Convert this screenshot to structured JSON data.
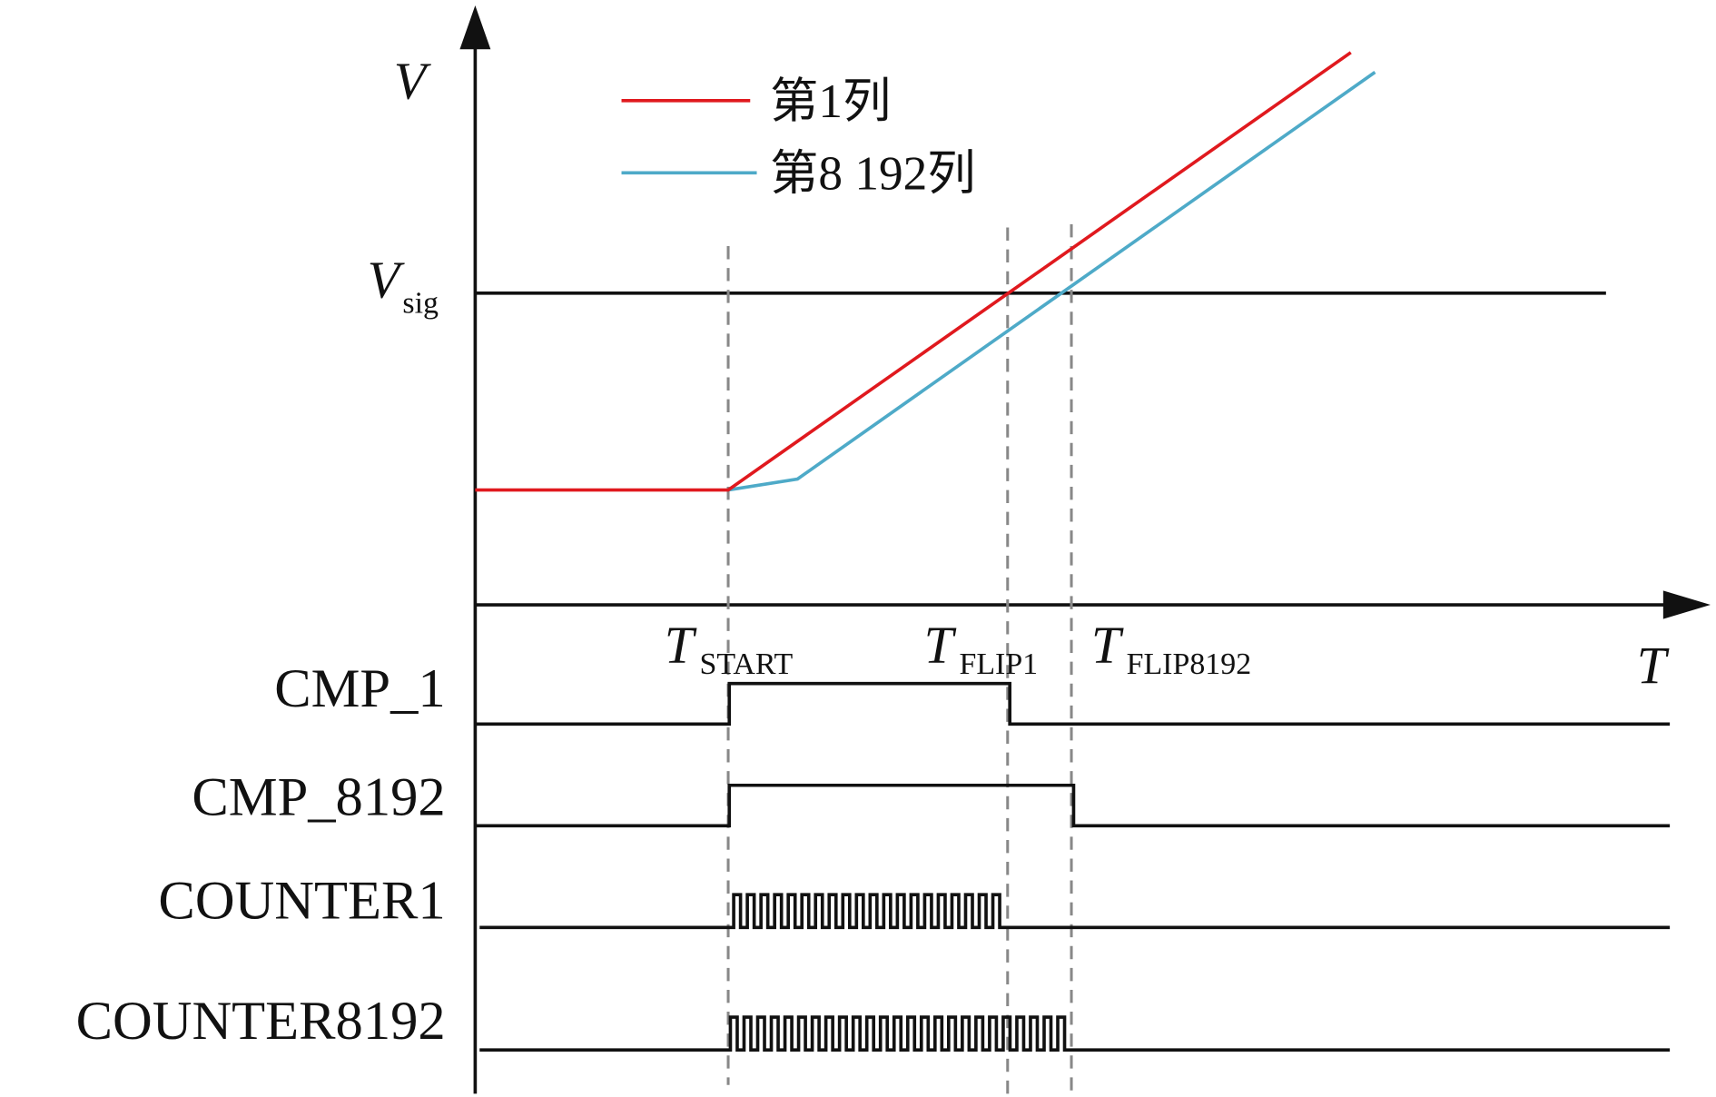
{
  "axes": {
    "y_label": "V",
    "x_label": "T"
  },
  "legend": [
    {
      "label": "第1列",
      "color": "#e0191e"
    },
    {
      "label": "第8 192列",
      "color": "#4eaac8"
    }
  ],
  "reference": {
    "main": "V",
    "sub": "sig"
  },
  "time_marks": [
    {
      "main": "T",
      "sub": "START"
    },
    {
      "main": "T",
      "sub": "FLIP1"
    },
    {
      "main": "T",
      "sub": "FLIP8192"
    }
  ],
  "signals": [
    "CMP_1",
    "CMP_8192",
    "COUNTER1",
    "COUNTER8192"
  ]
}
